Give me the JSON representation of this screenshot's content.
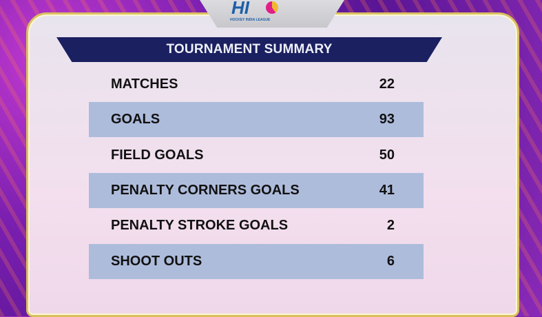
{
  "logo": {
    "text": "HIL",
    "subtitle": "HOCKEY INDIA LEAGUE"
  },
  "title": "TOURNAMENT SUMMARY",
  "rows": [
    {
      "label": "MATCHES",
      "value": "22"
    },
    {
      "label": "GOALS",
      "value": "93"
    },
    {
      "label": "FIELD GOALS",
      "value": "50"
    },
    {
      "label": "PENALTY CORNERS GOALS",
      "value": "41"
    },
    {
      "label": "PENALTY STROKE GOALS",
      "value": "2"
    },
    {
      "label": "SHOOT OUTS",
      "value": "6"
    }
  ]
}
